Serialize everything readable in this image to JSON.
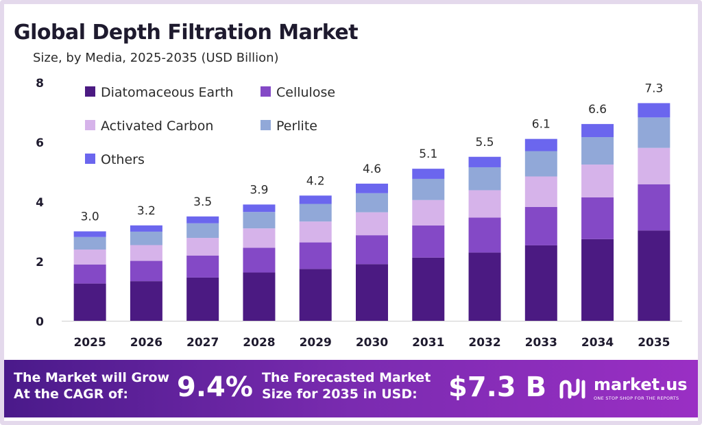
{
  "chart_data": {
    "type": "bar",
    "stacked": true,
    "title": "Global Depth Filtration Market",
    "subtitle": "Size, by Media, 2025-2035 (USD Billion)",
    "xlabel": "",
    "ylabel": "",
    "ylim": [
      0,
      8
    ],
    "yticks": [
      "0",
      "2",
      "4",
      "6",
      "8"
    ],
    "categories": [
      "2025",
      "2026",
      "2027",
      "2028",
      "2029",
      "2030",
      "2031",
      "2032",
      "2033",
      "2034",
      "2035"
    ],
    "totals": [
      "3.0",
      "3.2",
      "3.5",
      "3.9",
      "4.2",
      "4.6",
      "5.1",
      "5.5",
      "6.1",
      "6.6",
      "7.3"
    ],
    "series": [
      {
        "name": "Diatomaceous Earth",
        "color": "#4b1a82",
        "values": [
          1.25,
          1.33,
          1.45,
          1.62,
          1.74,
          1.9,
          2.12,
          2.29,
          2.53,
          2.74,
          3.03
        ]
      },
      {
        "name": "Cellulose",
        "color": "#8449c6",
        "values": [
          0.64,
          0.68,
          0.74,
          0.83,
          0.89,
          0.97,
          1.08,
          1.17,
          1.29,
          1.4,
          1.55
        ]
      },
      {
        "name": "Activated Carbon",
        "color": "#d6b3ea",
        "values": [
          0.5,
          0.53,
          0.59,
          0.65,
          0.7,
          0.77,
          0.85,
          0.92,
          1.02,
          1.1,
          1.22
        ]
      },
      {
        "name": "Perlite",
        "color": "#91a8d8",
        "values": [
          0.42,
          0.45,
          0.49,
          0.55,
          0.59,
          0.64,
          0.71,
          0.77,
          0.85,
          0.92,
          1.02
        ]
      },
      {
        "name": "Others",
        "color": "#6b66ee",
        "values": [
          0.19,
          0.21,
          0.23,
          0.25,
          0.28,
          0.32,
          0.34,
          0.35,
          0.41,
          0.44,
          0.48
        ]
      }
    ],
    "legend_position": "top-left"
  },
  "banner": {
    "cagr_label_line1": "The Market will Grow",
    "cagr_label_line2": "At the CAGR of:",
    "cagr_value": "9.4%",
    "forecast_label_line1": "The Forecasted Market",
    "forecast_label_line2": "Size for 2035 in USD:",
    "forecast_value": "$7.3 B"
  },
  "brand": {
    "name": "market.us",
    "tagline": "ONE STOP SHOP FOR THE REPORTS"
  }
}
